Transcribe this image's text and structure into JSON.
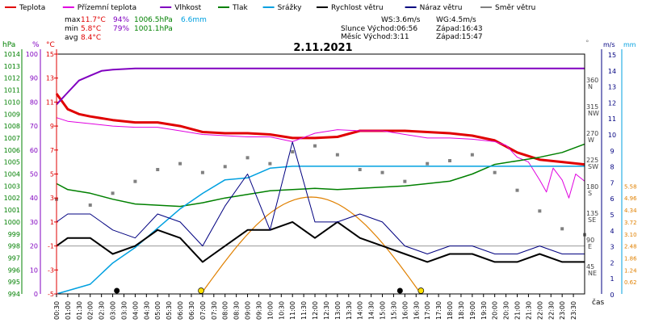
{
  "chart_data": {
    "type": "line",
    "title": "2.11.2021",
    "legend": [
      {
        "name": "Teplota",
        "color": "#e00000"
      },
      {
        "name": "Přízemní teplota",
        "color": "#e000e0"
      },
      {
        "name": "Vlhkost",
        "color": "#8000c0"
      },
      {
        "name": "Tlak",
        "color": "#008000"
      },
      {
        "name": "Srážky",
        "color": "#00a0e0"
      },
      {
        "name": "Rychlost větru",
        "color": "#000000"
      },
      {
        "name": "Náraz větru",
        "color": "#000080"
      },
      {
        "name": "Směr větru",
        "color": "#808080"
      }
    ],
    "stats": {
      "max_label": "max",
      "max_temp": "11.7°C",
      "max_hum": "94%",
      "max_press": "1006.5hPa",
      "max_rain": "6.6mm",
      "min_label": "min",
      "min_temp": "5.8°C",
      "min_hum": "79%",
      "min_press": "1001.1hPa",
      "avg_label": "avg",
      "avg_temp": "8.4°C"
    },
    "info": {
      "ws": "WS:3.6m/s",
      "wg": "WG:4.5m/s",
      "sun_rise": "Slunce Východ:06:56",
      "sun_set": "Západ:16:43",
      "moon_rise": "Měsíc  Východ:3:11",
      "moon_set": "Západ:15:47"
    },
    "axis_units": {
      "pressure": "hPa",
      "humidity": "%",
      "temperature": "°C",
      "direction": "°",
      "wind": "m/s",
      "rain": "mm",
      "time": "čas"
    },
    "pressure_ticks": [
      "1014",
      "1013",
      "1012",
      "1011",
      "1010",
      "1009",
      "1008",
      "1007",
      "1006",
      "1005",
      "1004",
      "1003",
      "1002",
      "1001",
      "1000",
      "999",
      "998",
      "997",
      "996",
      "995",
      "994"
    ],
    "humidity_ticks": [
      "100",
      "90",
      "80",
      "70",
      "60",
      "50",
      "40",
      "30",
      "20",
      "10",
      "0"
    ],
    "temp_ticks": [
      "15",
      "13",
      "11",
      "9",
      "7",
      "5",
      "3",
      "1",
      "-1",
      "-3",
      "-5"
    ],
    "temp_tick_values": [
      15,
      13,
      11,
      9,
      7,
      5,
      3,
      1,
      -1,
      -3,
      -5
    ],
    "dir_ticks": [
      {
        "deg": "360",
        "dir": "N"
      },
      {
        "deg": "315",
        "dir": "NW"
      },
      {
        "deg": "270",
        "dir": "W"
      },
      {
        "deg": "225",
        "dir": "SW"
      },
      {
        "deg": "180",
        "dir": "S"
      },
      {
        "deg": "135",
        "dir": "SE"
      },
      {
        "deg": "90",
        "dir": "E"
      },
      {
        "deg": "45",
        "dir": "NE"
      }
    ],
    "wind_ticks": [
      "15",
      "14",
      "13",
      "12",
      "11",
      "10",
      "9",
      "8",
      "7",
      "6",
      "5",
      "4",
      "3",
      "2",
      "1",
      "0"
    ],
    "rain_ticks": [
      "5.58",
      "4.96",
      "4.34",
      "3.72",
      "3.10",
      "2.48",
      "1.86",
      "1.24",
      "0.62"
    ],
    "time_ticks": [
      "00:30",
      "01:00",
      "01:30",
      "02:00",
      "02:30",
      "03:00",
      "03:30",
      "04:00",
      "04:30",
      "05:00",
      "05:30",
      "06:00",
      "06:30",
      "07:00",
      "07:30",
      "08:00",
      "08:30",
      "09:00",
      "09:30",
      "10:00",
      "10:30",
      "11:00",
      "11:30",
      "12:00",
      "12:30",
      "13:00",
      "13:30",
      "14:00",
      "14:30",
      "15:00",
      "15:30",
      "16:00",
      "16:30",
      "17:00",
      "17:30",
      "18:00",
      "18:30",
      "19:00",
      "19:30",
      "20:00",
      "20:30",
      "21:00",
      "21:30",
      "22:00",
      "22:30",
      "23:00",
      "23:30"
    ],
    "xlim_hours": [
      0.5,
      24
    ],
    "series": [
      {
        "name": "Teplota",
        "unit": "°C",
        "x": [
          0.5,
          1,
          1.5,
          2,
          3,
          4,
          5,
          6,
          7,
          8,
          9,
          10,
          11,
          12,
          13,
          14,
          15,
          16,
          17,
          18,
          19,
          20,
          21,
          22,
          23,
          23.5,
          24
        ],
        "values": [
          11.7,
          10.4,
          10.0,
          9.8,
          9.5,
          9.3,
          9.3,
          9.0,
          8.5,
          8.4,
          8.4,
          8.3,
          8.0,
          8.0,
          8.1,
          8.6,
          8.6,
          8.6,
          8.5,
          8.4,
          8.2,
          7.8,
          6.8,
          6.2,
          6.0,
          5.9,
          5.8
        ]
      },
      {
        "name": "Přízemní teplota",
        "unit": "°C",
        "x": [
          0.5,
          1,
          2,
          3,
          4,
          5,
          6,
          7,
          8,
          9,
          10,
          11,
          12,
          13,
          14,
          15,
          16,
          17,
          18,
          19,
          20,
          20.5,
          21,
          21.5,
          22,
          22.3,
          22.6,
          23,
          23.3,
          23.6,
          24
        ],
        "values": [
          9.7,
          9.4,
          9.2,
          9.0,
          8.9,
          8.9,
          8.6,
          8.3,
          8.2,
          8.1,
          8.1,
          7.7,
          8.4,
          8.7,
          8.6,
          8.6,
          8.3,
          8.0,
          8.0,
          7.9,
          7.7,
          7.4,
          6.4,
          6.0,
          4.5,
          3.5,
          5.5,
          4.5,
          3.0,
          5.0,
          4.4
        ]
      },
      {
        "name": "Vlhkost",
        "unit": "%",
        "x": [
          0.5,
          1,
          1.5,
          2,
          2.5,
          3,
          4,
          8,
          12,
          16,
          20,
          24
        ],
        "values": [
          79,
          84,
          89,
          91,
          93,
          93.5,
          94,
          94,
          94,
          94,
          94,
          94
        ]
      },
      {
        "name": "Tlak",
        "unit": "hPa",
        "x": [
          0.5,
          1,
          2,
          3,
          4,
          5,
          6,
          7,
          8,
          9,
          10,
          11,
          12,
          13,
          14,
          15,
          16,
          17,
          18,
          19,
          20,
          21,
          22,
          23,
          24
        ],
        "values": [
          1003.2,
          1002.7,
          1002.4,
          1001.9,
          1001.5,
          1001.4,
          1001.3,
          1001.6,
          1002.0,
          1002.3,
          1002.6,
          1002.7,
          1002.8,
          1002.7,
          1002.8,
          1002.9,
          1003.0,
          1003.2,
          1003.4,
          1004.0,
          1004.8,
          1005.1,
          1005.4,
          1005.8,
          1006.5
        ]
      },
      {
        "name": "Srážky",
        "unit": "mm",
        "x": [
          0.5,
          2,
          3,
          4,
          5,
          6,
          7,
          8,
          9,
          10,
          11,
          12,
          24
        ],
        "values": [
          0,
          0.5,
          1.6,
          2.4,
          3.4,
          4.4,
          5.2,
          5.9,
          6.0,
          6.5,
          6.6,
          6.6,
          6.6
        ]
      },
      {
        "name": "Rychlost větru",
        "unit": "m/s",
        "x": [
          0.5,
          1,
          2,
          3,
          4,
          5,
          6,
          7,
          8,
          9,
          10,
          11,
          12,
          13,
          14,
          15,
          16,
          17,
          18,
          19,
          20,
          21,
          22,
          23,
          24
        ],
        "values": [
          3.0,
          3.5,
          3.5,
          2.5,
          3.0,
          4.0,
          3.5,
          2.0,
          3.0,
          4.0,
          4.0,
          4.5,
          3.5,
          4.5,
          3.5,
          3.0,
          2.5,
          2.0,
          2.5,
          2.5,
          2.0,
          2.0,
          2.5,
          2.0,
          2.0
        ]
      },
      {
        "name": "Náraz větru",
        "unit": "m/s",
        "x": [
          0.5,
          1,
          2,
          3,
          4,
          5,
          6,
          7,
          8,
          9,
          10,
          11,
          12,
          13,
          14,
          15,
          16,
          17,
          18,
          19,
          20,
          21,
          22,
          23,
          24
        ],
        "values": [
          4.5,
          5.0,
          5.0,
          4.0,
          3.5,
          5.0,
          4.5,
          3.0,
          5.5,
          7.5,
          4.0,
          9.5,
          4.5,
          4.5,
          5.0,
          4.5,
          3.0,
          2.5,
          3.0,
          3.0,
          2.5,
          2.5,
          3.0,
          2.5,
          2.5
        ]
      },
      {
        "name": "Směr větru",
        "unit": "°",
        "x": [
          0.5,
          2,
          3,
          4,
          5,
          6,
          7,
          8,
          9,
          10,
          11,
          12,
          13,
          14,
          15,
          16,
          17,
          18,
          19,
          20,
          21,
          22,
          23,
          24
        ],
        "values": [
          160,
          150,
          170,
          190,
          210,
          220,
          205,
          215,
          230,
          220,
          240,
          250,
          235,
          210,
          205,
          190,
          220,
          225,
          235,
          205,
          175,
          140,
          110,
          100
        ]
      }
    ]
  }
}
